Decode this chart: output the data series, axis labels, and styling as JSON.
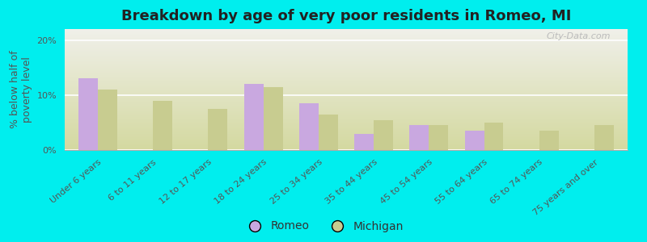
{
  "title": "Breakdown by age of very poor residents in Romeo, MI",
  "ylabel": "% below half of\npoverty level",
  "categories": [
    "Under 6 years",
    "6 to 11 years",
    "12 to 17 years",
    "18 to 24 years",
    "25 to 34 years",
    "35 to 44 years",
    "45 to 54 years",
    "55 to 64 years",
    "65 to 74 years",
    "75 years and over"
  ],
  "romeo_values": [
    13.0,
    0.0,
    0.0,
    12.0,
    8.5,
    3.0,
    4.5,
    3.5,
    0.0,
    0.0
  ],
  "michigan_values": [
    11.0,
    9.0,
    7.5,
    11.5,
    6.5,
    5.5,
    4.5,
    5.0,
    3.5,
    4.5
  ],
  "romeo_color": "#c9a8e0",
  "michigan_color": "#c8cc90",
  "background_outer": "#00eeee",
  "background_plot_bottom": "#d4d9a0",
  "background_plot_top": "#f0f0ea",
  "ylim": [
    0,
    22
  ],
  "yticks": [
    0,
    10,
    20
  ],
  "ytick_labels": [
    "0%",
    "10%",
    "20%"
  ],
  "bar_width": 0.35,
  "title_fontsize": 13,
  "axis_fontsize": 9,
  "tick_fontsize": 8,
  "legend_fontsize": 10,
  "watermark_text": "City-Data.com"
}
